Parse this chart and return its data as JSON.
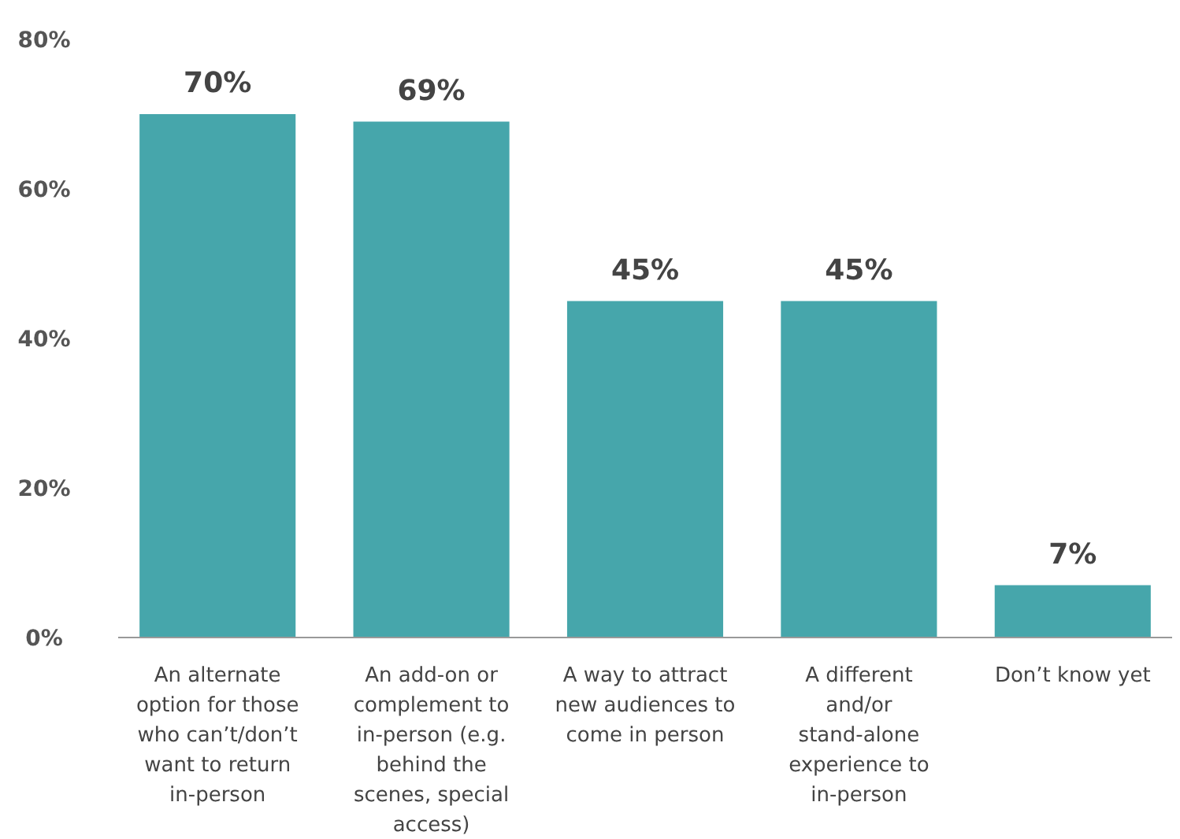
{
  "chart_data": {
    "type": "bar",
    "categories": [
      "An alternate option for those who can’t/don’t want to return in-person",
      "An add-on or complement to in-person (e.g. behind the scenes, special access)",
      "A way to attract new audiences to come in person",
      "A different and/or stand-alone experience to in-person",
      "Don’t know yet"
    ],
    "values": [
      70,
      69,
      45,
      45,
      7
    ],
    "value_labels": [
      "70%",
      "69%",
      "45%",
      "45%",
      "7%"
    ],
    "color": "#46a6ab",
    "ylim": [
      0,
      80
    ],
    "yticks": [
      {
        "value": 0,
        "label": "0%"
      },
      {
        "value": 20,
        "label": "20%"
      },
      {
        "value": 40,
        "label": "40%"
      },
      {
        "value": 60,
        "label": "60%"
      },
      {
        "value": 80,
        "label": "80%"
      }
    ],
    "grid": false
  }
}
